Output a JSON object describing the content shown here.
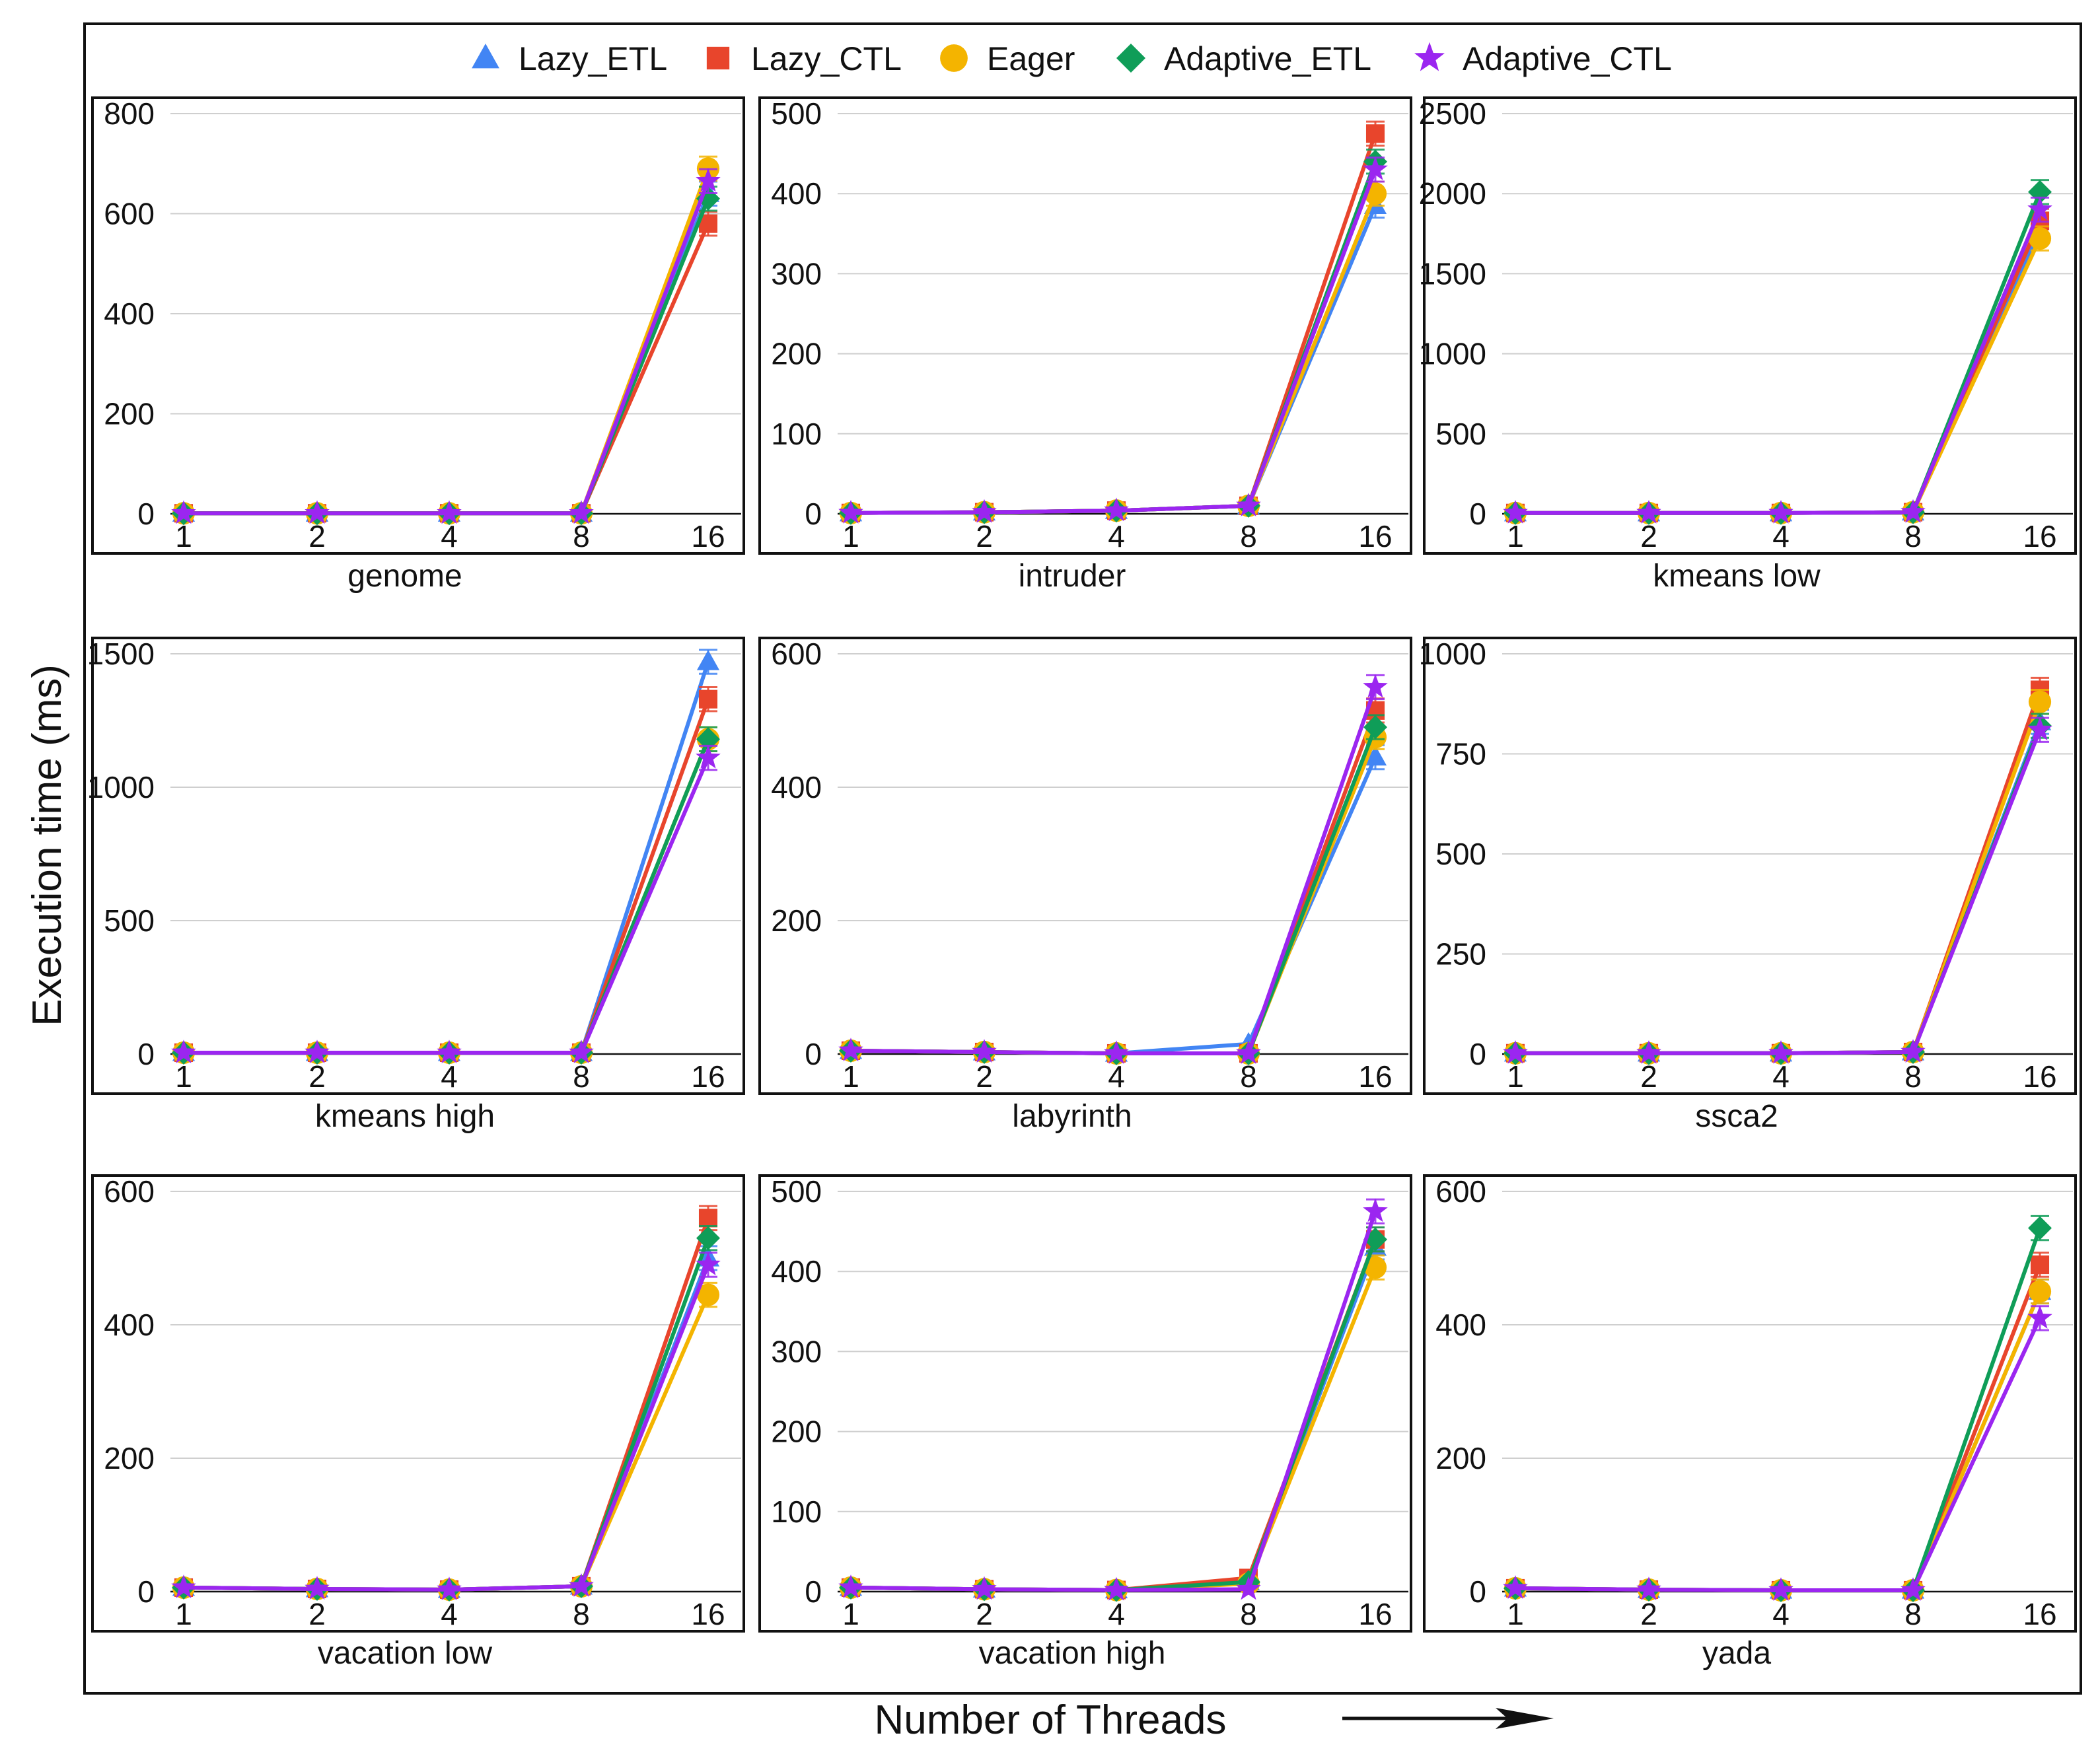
{
  "figure": {
    "ylabel": "Execution time (ms)",
    "xlabel": "Number of Threads"
  },
  "legend": [
    {
      "name": "Lazy_ETL",
      "color": "#4285f4",
      "marker": "triangle"
    },
    {
      "name": "Lazy_CTL",
      "color": "#e8452c",
      "marker": "square"
    },
    {
      "name": "Eager",
      "color": "#f4b400",
      "marker": "circle"
    },
    {
      "name": "Adaptive_ETL",
      "color": "#0f9d58",
      "marker": "diamond"
    },
    {
      "name": "Adaptive_CTL",
      "color": "#9b26f0",
      "marker": "star"
    }
  ],
  "chart_data": [
    {
      "type": "line",
      "title": "genome",
      "categories": [
        "1",
        "2",
        "4",
        "8",
        "16"
      ],
      "ylim": [
        0,
        800
      ],
      "yticks": [
        0,
        200,
        400,
        600,
        800
      ],
      "series": [
        {
          "name": "Lazy_ETL",
          "values": [
            1,
            1,
            1,
            1,
            640
          ]
        },
        {
          "name": "Lazy_CTL",
          "values": [
            1,
            1,
            1,
            1,
            580
          ]
        },
        {
          "name": "Eager",
          "values": [
            1,
            1,
            1,
            1,
            690
          ]
        },
        {
          "name": "Adaptive_ETL",
          "values": [
            1,
            1,
            1,
            1,
            630
          ]
        },
        {
          "name": "Adaptive_CTL",
          "values": [
            1,
            1,
            1,
            1,
            665
          ]
        }
      ]
    },
    {
      "type": "line",
      "title": "intruder",
      "categories": [
        "1",
        "2",
        "4",
        "8",
        "16"
      ],
      "ylim": [
        0,
        500
      ],
      "yticks": [
        0,
        100,
        200,
        300,
        400,
        500
      ],
      "series": [
        {
          "name": "Lazy_ETL",
          "values": [
            1,
            2,
            4,
            10,
            385
          ]
        },
        {
          "name": "Lazy_CTL",
          "values": [
            1,
            2,
            4,
            10,
            475
          ]
        },
        {
          "name": "Eager",
          "values": [
            1,
            2,
            4,
            10,
            400
          ]
        },
        {
          "name": "Adaptive_ETL",
          "values": [
            1,
            2,
            4,
            10,
            440
          ]
        },
        {
          "name": "Adaptive_CTL",
          "values": [
            1,
            2,
            4,
            10,
            430
          ]
        }
      ]
    },
    {
      "type": "line",
      "title": "kmeans low",
      "categories": [
        "1",
        "2",
        "4",
        "8",
        "16"
      ],
      "ylim": [
        0,
        2500
      ],
      "yticks": [
        0,
        500,
        1000,
        1500,
        2000,
        2500
      ],
      "series": [
        {
          "name": "Lazy_ETL",
          "values": [
            5,
            5,
            5,
            10,
            1780
          ]
        },
        {
          "name": "Lazy_CTL",
          "values": [
            5,
            5,
            5,
            10,
            1830
          ]
        },
        {
          "name": "Eager",
          "values": [
            5,
            5,
            5,
            10,
            1720
          ]
        },
        {
          "name": "Adaptive_ETL",
          "values": [
            5,
            5,
            5,
            10,
            2010
          ]
        },
        {
          "name": "Adaptive_CTL",
          "values": [
            5,
            5,
            5,
            10,
            1900
          ]
        }
      ]
    },
    {
      "type": "line",
      "title": "kmeans high",
      "categories": [
        "1",
        "2",
        "4",
        "8",
        "16"
      ],
      "ylim": [
        0,
        1500
      ],
      "yticks": [
        0,
        500,
        1000,
        1500
      ],
      "series": [
        {
          "name": "Lazy_ETL",
          "values": [
            5,
            5,
            5,
            5,
            1470
          ]
        },
        {
          "name": "Lazy_CTL",
          "values": [
            5,
            5,
            5,
            5,
            1330
          ]
        },
        {
          "name": "Eager",
          "values": [
            5,
            5,
            5,
            5,
            1180
          ]
        },
        {
          "name": "Adaptive_ETL",
          "values": [
            5,
            5,
            5,
            5,
            1180
          ]
        },
        {
          "name": "Adaptive_CTL",
          "values": [
            5,
            5,
            5,
            5,
            1110
          ]
        }
      ]
    },
    {
      "type": "line",
      "title": "labyrinth",
      "categories": [
        "1",
        "2",
        "4",
        "8",
        "16"
      ],
      "ylim": [
        0,
        600
      ],
      "yticks": [
        0,
        200,
        400,
        600
      ],
      "series": [
        {
          "name": "Lazy_ETL",
          "values": [
            5,
            3,
            1,
            15,
            445
          ]
        },
        {
          "name": "Lazy_CTL",
          "values": [
            5,
            3,
            1,
            1,
            515
          ]
        },
        {
          "name": "Eager",
          "values": [
            5,
            3,
            1,
            1,
            475
          ]
        },
        {
          "name": "Adaptive_ETL",
          "values": [
            5,
            3,
            1,
            1,
            490
          ]
        },
        {
          "name": "Adaptive_CTL",
          "values": [
            5,
            3,
            1,
            1,
            550
          ]
        }
      ]
    },
    {
      "type": "line",
      "title": "ssca2",
      "categories": [
        "1",
        "2",
        "4",
        "8",
        "16"
      ],
      "ylim": [
        0,
        1000
      ],
      "yticks": [
        0,
        250,
        500,
        750,
        1000
      ],
      "series": [
        {
          "name": "Lazy_ETL",
          "values": [
            2,
            2,
            2,
            5,
            830
          ]
        },
        {
          "name": "Lazy_CTL",
          "values": [
            2,
            2,
            2,
            5,
            910
          ]
        },
        {
          "name": "Eager",
          "values": [
            2,
            2,
            2,
            5,
            880
          ]
        },
        {
          "name": "Adaptive_ETL",
          "values": [
            2,
            2,
            2,
            5,
            820
          ]
        },
        {
          "name": "Adaptive_CTL",
          "values": [
            2,
            2,
            2,
            5,
            810
          ]
        }
      ]
    },
    {
      "type": "line",
      "title": "vacation low",
      "categories": [
        "1",
        "2",
        "4",
        "8",
        "16"
      ],
      "ylim": [
        0,
        600
      ],
      "yticks": [
        0,
        200,
        400,
        600
      ],
      "series": [
        {
          "name": "Lazy_ETL",
          "values": [
            6,
            4,
            3,
            8,
            500
          ]
        },
        {
          "name": "Lazy_CTL",
          "values": [
            6,
            4,
            3,
            8,
            560
          ]
        },
        {
          "name": "Eager",
          "values": [
            6,
            4,
            3,
            8,
            445
          ]
        },
        {
          "name": "Adaptive_ETL",
          "values": [
            6,
            4,
            3,
            8,
            530
          ]
        },
        {
          "name": "Adaptive_CTL",
          "values": [
            6,
            4,
            3,
            8,
            490
          ]
        }
      ]
    },
    {
      "type": "line",
      "title": "vacation high",
      "categories": [
        "1",
        "2",
        "4",
        "8",
        "16"
      ],
      "ylim": [
        0,
        500
      ],
      "yticks": [
        0,
        100,
        200,
        300,
        400,
        500
      ],
      "series": [
        {
          "name": "Lazy_ETL",
          "values": [
            5,
            3,
            2,
            12,
            430
          ]
        },
        {
          "name": "Lazy_CTL",
          "values": [
            5,
            3,
            2,
            17,
            440
          ]
        },
        {
          "name": "Eager",
          "values": [
            5,
            3,
            2,
            10,
            405
          ]
        },
        {
          "name": "Adaptive_ETL",
          "values": [
            5,
            3,
            2,
            12,
            440
          ]
        },
        {
          "name": "Adaptive_CTL",
          "values": [
            5,
            3,
            2,
            3,
            475
          ]
        }
      ]
    },
    {
      "type": "line",
      "title": "yada",
      "categories": [
        "1",
        "2",
        "4",
        "8",
        "16"
      ],
      "ylim": [
        0,
        600
      ],
      "yticks": [
        0,
        200,
        400,
        600
      ],
      "series": [
        {
          "name": "Lazy_ETL",
          "values": [
            5,
            3,
            2,
            2,
            450
          ]
        },
        {
          "name": "Lazy_CTL",
          "values": [
            5,
            3,
            2,
            2,
            490
          ]
        },
        {
          "name": "Eager",
          "values": [
            5,
            3,
            2,
            2,
            450
          ]
        },
        {
          "name": "Adaptive_ETL",
          "values": [
            5,
            3,
            2,
            2,
            545
          ]
        },
        {
          "name": "Adaptive_CTL",
          "values": [
            5,
            3,
            2,
            2,
            410
          ]
        }
      ]
    }
  ]
}
